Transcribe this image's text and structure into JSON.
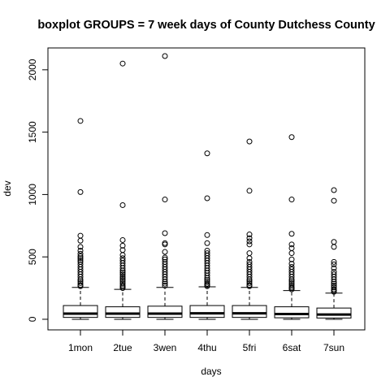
{
  "chart_data": {
    "type": "boxplot",
    "title": "boxplot GROUPS = 7 week days of County Dutchess County",
    "xlabel": "days",
    "ylabel": "dev",
    "categories": [
      "1mon",
      "2tue",
      "3wen",
      "4thu",
      "5fri",
      "6sat",
      "7sun"
    ],
    "y_ticks": [
      "0",
      "500",
      "1000",
      "1500",
      "2000"
    ],
    "ylim": [
      -85,
      2175
    ],
    "grid": false,
    "boxes": [
      {
        "category": "1mon",
        "min": 0,
        "q1": 15,
        "median": 45,
        "q3": 110,
        "max": 255,
        "outliers": [
          265,
          275,
          290,
          305,
          320,
          340,
          360,
          380,
          400,
          420,
          440,
          460,
          475,
          490,
          505,
          525,
          550,
          580,
          630,
          670,
          1020,
          1590
        ]
      },
      {
        "category": "2tue",
        "min": 0,
        "q1": 15,
        "median": 45,
        "q3": 100,
        "max": 240,
        "outliers": [
          250,
          260,
          270,
          285,
          300,
          315,
          330,
          345,
          360,
          375,
          390,
          410,
          430,
          450,
          470,
          490,
          515,
          555,
          590,
          635,
          915,
          2050
        ]
      },
      {
        "category": "3wen",
        "min": 0,
        "q1": 15,
        "median": 45,
        "q3": 105,
        "max": 255,
        "outliers": [
          270,
          285,
          300,
          320,
          340,
          360,
          380,
          400,
          420,
          440,
          460,
          480,
          495,
          540,
          600,
          610,
          690,
          960,
          2110
        ]
      },
      {
        "category": "4thu",
        "min": 0,
        "q1": 15,
        "median": 48,
        "q3": 110,
        "max": 260,
        "outliers": [
          265,
          275,
          285,
          300,
          315,
          330,
          350,
          370,
          390,
          410,
          430,
          450,
          470,
          490,
          510,
          530,
          550,
          610,
          675,
          970,
          1330
        ]
      },
      {
        "category": "5fri",
        "min": 0,
        "q1": 15,
        "median": 48,
        "q3": 110,
        "max": 255,
        "outliers": [
          265,
          275,
          290,
          305,
          320,
          340,
          360,
          380,
          400,
          420,
          440,
          460,
          490,
          530,
          600,
          625,
          650,
          680,
          1030,
          1425
        ]
      },
      {
        "category": "6sat",
        "min": 0,
        "q1": 12,
        "median": 42,
        "q3": 100,
        "max": 230,
        "outliers": [
          240,
          250,
          260,
          275,
          290,
          305,
          320,
          340,
          360,
          380,
          400,
          420,
          445,
          480,
          530,
          570,
          600,
          685,
          960,
          1460
        ]
      },
      {
        "category": "7sun",
        "min": 0,
        "q1": 10,
        "median": 38,
        "q3": 90,
        "max": 210,
        "outliers": [
          220,
          230,
          240,
          255,
          270,
          285,
          300,
          320,
          340,
          360,
          380,
          410,
          440,
          460,
          580,
          620,
          950,
          1035
        ]
      }
    ]
  }
}
